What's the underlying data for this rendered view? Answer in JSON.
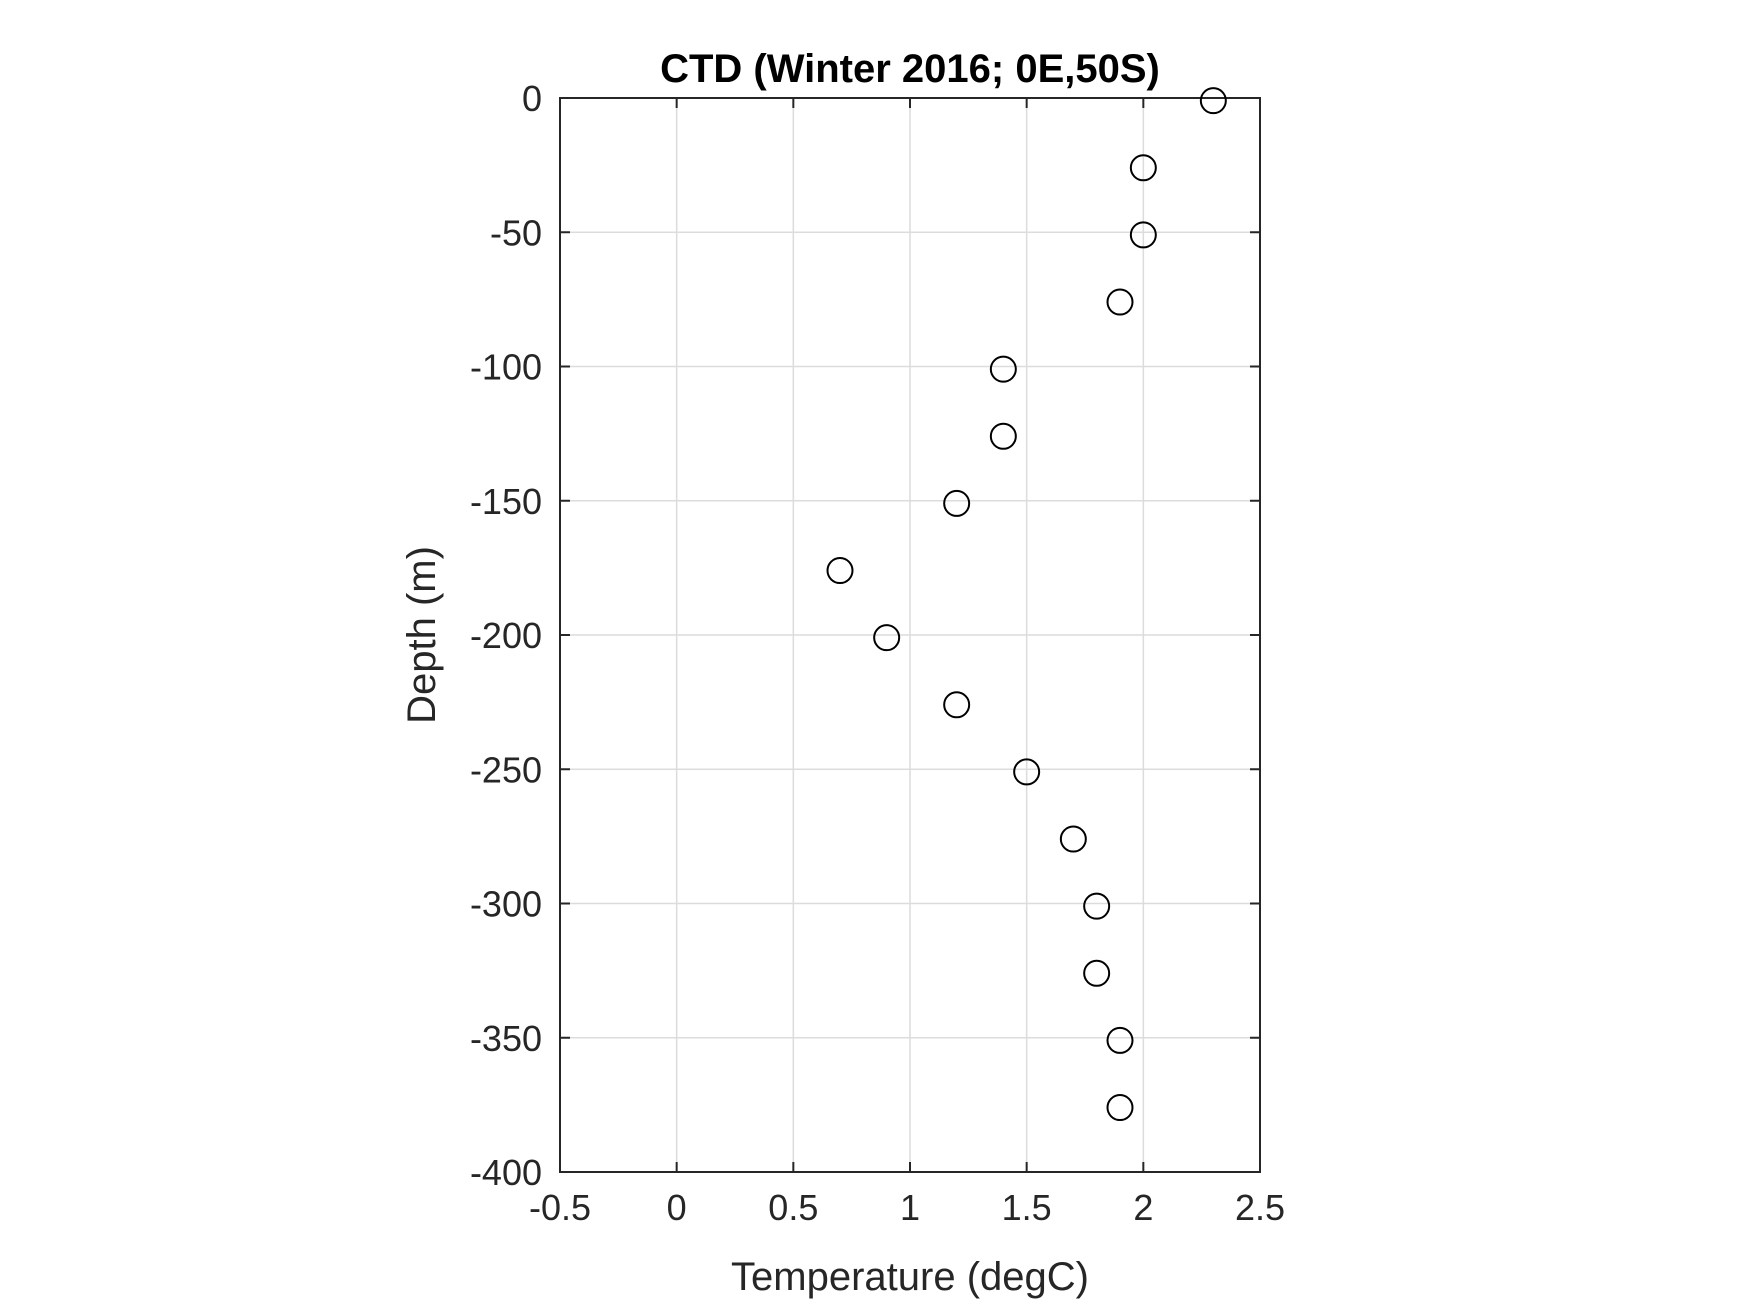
{
  "chart_data": {
    "type": "scatter",
    "title": "CTD (Winter 2016; 0E,50S)",
    "xlabel": "Temperature (degC)",
    "ylabel": "Depth (m)",
    "xlim": [
      -0.5,
      2.5
    ],
    "ylim": [
      -400,
      0
    ],
    "xticks": [
      -0.5,
      0,
      0.5,
      1,
      1.5,
      2,
      2.5
    ],
    "xtick_labels": [
      "-0.5",
      "0",
      "0.5",
      "1",
      "1.5",
      "2",
      "2.5"
    ],
    "yticks": [
      0,
      -50,
      -100,
      -150,
      -200,
      -250,
      -300,
      -350,
      -400
    ],
    "ytick_labels": [
      "0",
      "-50",
      "-100",
      "-150",
      "-200",
      "-250",
      "-300",
      "-350",
      "-400"
    ],
    "grid": true,
    "marker": "open-circle",
    "marker_color": "#000000",
    "series": [
      {
        "x": [
          2.3,
          2.0,
          2.0,
          1.9,
          1.4,
          1.4,
          1.2,
          0.7,
          0.9,
          1.2,
          1.5,
          1.7,
          1.8,
          1.8,
          1.9,
          1.9
        ],
        "y": [
          -1,
          -26,
          -51,
          -76,
          -101,
          -126,
          -151,
          -176,
          -201,
          -226,
          -251,
          -276,
          -301,
          -326,
          -351,
          -376
        ]
      }
    ]
  },
  "colors": {
    "axis": "#262626",
    "grid": "#dcdcdc",
    "marker": "#000000",
    "background": "#ffffff"
  }
}
